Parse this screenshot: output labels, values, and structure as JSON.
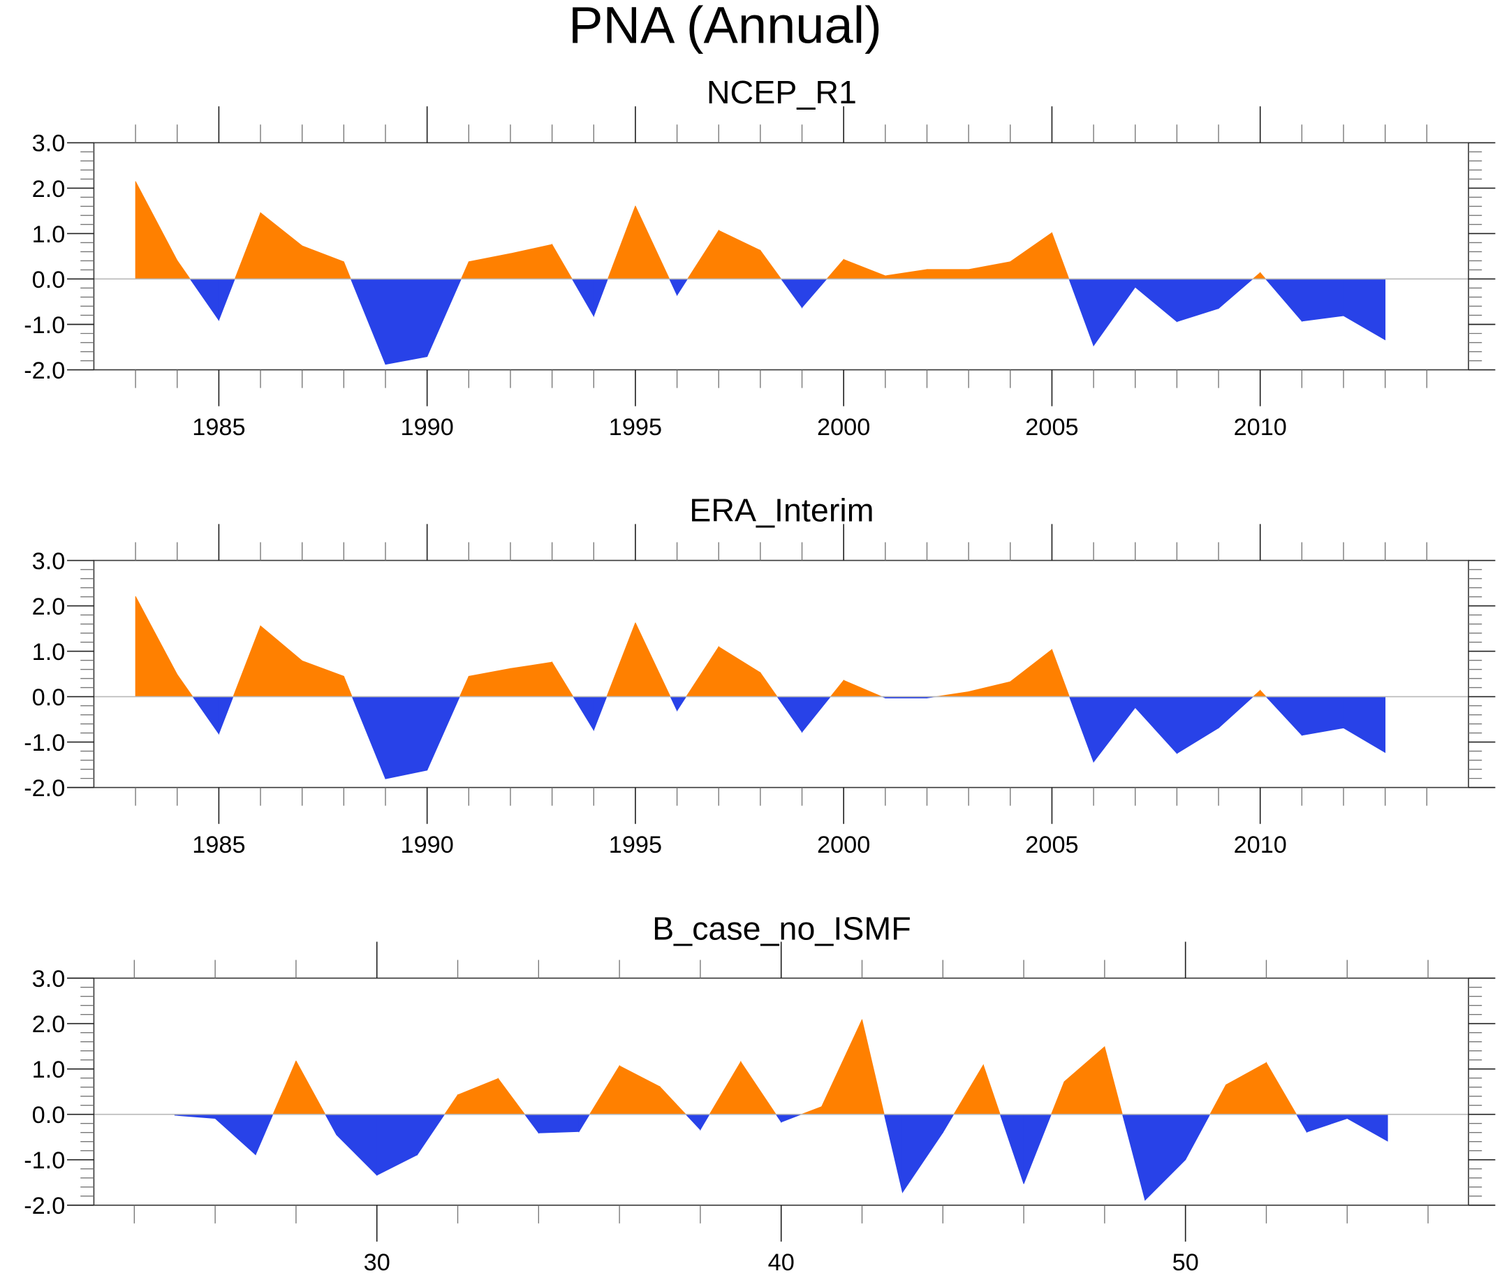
{
  "title": "PNA (Annual)",
  "colors": {
    "positive": "#ff8000",
    "negative": "#2842e8"
  },
  "chart_data": [
    {
      "type": "area",
      "title": "NCEP_R1",
      "xlabel": "",
      "ylabel": "",
      "ylim": [
        -2.0,
        3.0
      ],
      "xlim": [
        1982,
        2015
      ],
      "yticks": [
        3.0,
        2.0,
        1.0,
        0.0,
        -1.0,
        -2.0
      ],
      "ytick_labels": [
        "3.0",
        "2.0",
        "1.0",
        "0.0",
        "-1.0",
        "-2.0"
      ],
      "xticks_major": [
        1985,
        1990,
        1995,
        2000,
        2005,
        2010
      ],
      "xtick_labels": [
        "1985",
        "1990",
        "1995",
        "2000",
        "2005",
        "2010"
      ],
      "xtick_minor_step": 1,
      "grid": false,
      "x": [
        1983,
        1984,
        1985,
        1986,
        1987,
        1988,
        1989,
        1990,
        1991,
        1992,
        1993,
        1994,
        1995,
        1996,
        1997,
        1998,
        1999,
        2000,
        2001,
        2002,
        2003,
        2004,
        2005,
        2006,
        2007,
        2008,
        2009,
        2010,
        2011,
        2012,
        2013
      ],
      "values": [
        2.15,
        0.41,
        -0.91,
        1.46,
        0.73,
        0.38,
        -1.88,
        -1.71,
        0.38,
        0.56,
        0.76,
        -0.82,
        1.61,
        -0.36,
        1.07,
        0.63,
        -0.63,
        0.43,
        0.07,
        0.21,
        0.21,
        0.38,
        1.02,
        -1.47,
        -0.18,
        -0.94,
        -0.65,
        0.14,
        -0.93,
        -0.81,
        -1.34
      ]
    },
    {
      "type": "area",
      "title": "ERA_Interim",
      "xlabel": "",
      "ylabel": "",
      "ylim": [
        -2.0,
        3.0
      ],
      "xlim": [
        1982,
        2015
      ],
      "yticks": [
        3.0,
        2.0,
        1.0,
        0.0,
        -1.0,
        -2.0
      ],
      "ytick_labels": [
        "3.0",
        "2.0",
        "1.0",
        "0.0",
        "-1.0",
        "-2.0"
      ],
      "xticks_major": [
        1985,
        1990,
        1995,
        2000,
        2005,
        2010
      ],
      "xtick_labels": [
        "1985",
        "1990",
        "1995",
        "2000",
        "2005",
        "2010"
      ],
      "xtick_minor_step": 1,
      "grid": false,
      "x": [
        1983,
        1984,
        1985,
        1986,
        1987,
        1988,
        1989,
        1990,
        1991,
        1992,
        1993,
        1994,
        1995,
        1996,
        1997,
        1998,
        1999,
        2000,
        2001,
        2002,
        2003,
        2004,
        2005,
        2006,
        2007,
        2008,
        2009,
        2010,
        2011,
        2012,
        2013
      ],
      "values": [
        2.21,
        0.49,
        -0.82,
        1.56,
        0.79,
        0.45,
        -1.81,
        -1.62,
        0.45,
        0.62,
        0.76,
        -0.74,
        1.63,
        -0.31,
        1.1,
        0.53,
        -0.78,
        0.36,
        -0.03,
        -0.03,
        0.11,
        0.33,
        1.04,
        -1.44,
        -0.24,
        -1.25,
        -0.69,
        0.14,
        -0.85,
        -0.69,
        -1.23
      ]
    },
    {
      "type": "area",
      "title": "B_case_no_ISMF",
      "xlabel": "",
      "ylabel": "",
      "ylim": [
        -2.0,
        3.0
      ],
      "xlim": [
        23,
        57
      ],
      "yticks": [
        3.0,
        2.0,
        1.0,
        0.0,
        -1.0,
        -2.0
      ],
      "ytick_labels": [
        "3.0",
        "2.0",
        "1.0",
        "0.0",
        "-1.0",
        "-2.0"
      ],
      "xticks_major": [
        30,
        40,
        50
      ],
      "xtick_labels": [
        "30",
        "40",
        "50"
      ],
      "xtick_minor_step": 2,
      "grid": false,
      "x": [
        25,
        26,
        27,
        28,
        29,
        30,
        31,
        32,
        33,
        34,
        35,
        36,
        37,
        38,
        39,
        40,
        41,
        42,
        43,
        44,
        45,
        46,
        47,
        48,
        49,
        50,
        51,
        52,
        53,
        54,
        55
      ],
      "values": [
        -0.02,
        -0.09,
        -0.89,
        1.18,
        -0.45,
        -1.34,
        -0.89,
        0.43,
        0.79,
        -0.41,
        -0.38,
        1.07,
        0.61,
        -0.34,
        1.16,
        -0.17,
        0.17,
        2.09,
        -1.72,
        -0.4,
        1.09,
        -1.53,
        0.72,
        1.49,
        -1.89,
        -1.0,
        0.65,
        1.14,
        -0.39,
        -0.09,
        -0.59
      ]
    }
  ]
}
